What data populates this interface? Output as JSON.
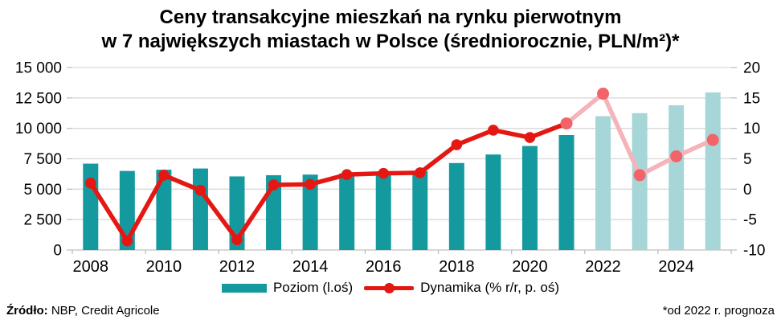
{
  "title": {
    "line1": "Ceny transakcyjne mieszkań na rynku pierwotnym",
    "line2": "w 7 największych miastach w Polsce (średniorocznie, PLN/m²)*"
  },
  "chart_data": {
    "type": "bar+line combo",
    "categories": [
      2008,
      2009,
      2010,
      2011,
      2012,
      2013,
      2014,
      2015,
      2016,
      2017,
      2018,
      2019,
      2020,
      2021,
      2022,
      2023,
      2024,
      2025
    ],
    "series": [
      {
        "name": "Poziom (l.oś)",
        "type": "bar",
        "axis": "left",
        "unit": "PLN/m²",
        "values": [
          7100,
          6500,
          6600,
          6700,
          6050,
          6150,
          6200,
          6300,
          6400,
          6500,
          7150,
          7850,
          8550,
          9450,
          11000,
          11250,
          11900,
          12950
        ],
        "forecast_from_index": 14
      },
      {
        "name": "Dynamika (% r/r, p. oś)",
        "type": "line",
        "axis": "right",
        "unit": "% r/r",
        "values": [
          1.0,
          -8.5,
          2.3,
          -0.2,
          -8.3,
          0.7,
          0.8,
          2.4,
          2.6,
          2.7,
          7.3,
          9.7,
          8.5,
          10.8,
          15.7,
          2.3,
          5.4,
          8.1
        ],
        "light_dots_from_index": 13,
        "pink_segments_from_index": 13
      }
    ],
    "left_axis": {
      "min": 0,
      "max": 15000,
      "step": 2500,
      "tick_labels": [
        "0",
        "2 500",
        "5 000",
        "7 500",
        "10 000",
        "12 500",
        "15 000"
      ]
    },
    "right_axis": {
      "min": -10,
      "max": 20,
      "step": 5,
      "tick_labels": [
        "-10",
        "-5",
        "0",
        "5",
        "10",
        "15",
        "20"
      ]
    },
    "x_tick_labels": [
      "2008",
      "2010",
      "2012",
      "2014",
      "2016",
      "2018",
      "2020",
      "2022",
      "2024"
    ],
    "x_label_interval": 2,
    "grid": true,
    "legend_position": "bottom",
    "xlabel": "",
    "ylabel_left": "",
    "ylabel_right": "",
    "colors": {
      "bar": "#149a9e",
      "bar_forecast": "#a6d6d7",
      "line": "#e51712",
      "dot": "#e51712",
      "line_forecast": "#f5b3ba",
      "dot_forecast": "#f2636a",
      "gridline": "#d9d9d9",
      "axis_line": "#bfbfbf",
      "text": "#000000"
    }
  },
  "legend": {
    "items": [
      {
        "label": "Poziom (l.oś)"
      },
      {
        "label": "Dynamika (% r/r, p. oś)"
      }
    ]
  },
  "footer": {
    "source_label": "Źródło:",
    "source_text": " NBP, Credit Agricole",
    "note": "*od 2022 r. prognoza"
  }
}
